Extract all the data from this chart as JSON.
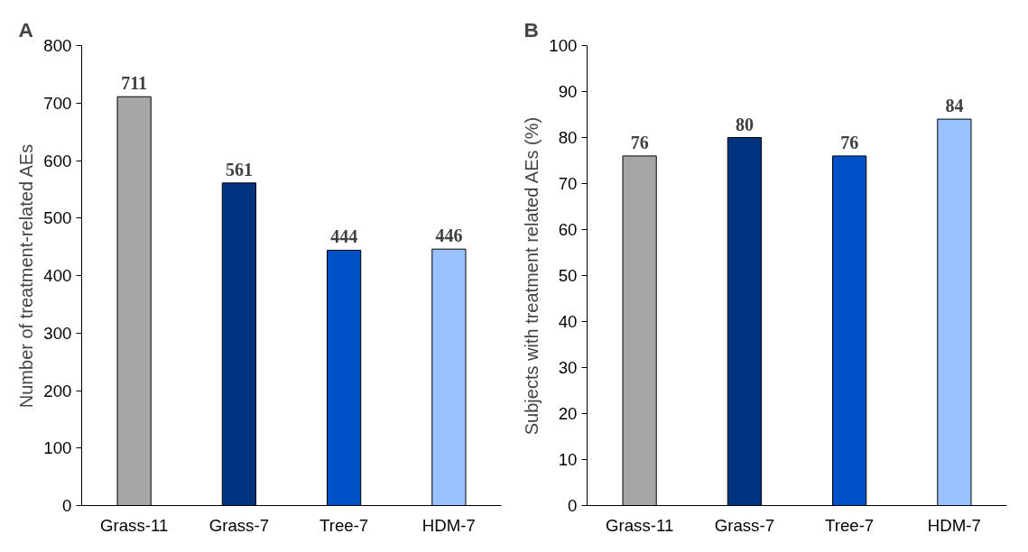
{
  "chart_data": [
    {
      "type": "bar",
      "title": "A",
      "ylabel": "Number of treatment-related AEs",
      "categories": [
        "Grass-11",
        "Grass-7",
        "Tree-7",
        "HDM-7"
      ],
      "values": [
        711,
        561,
        444,
        446
      ],
      "colors": [
        "#a6a6a6",
        "#003380",
        "#0050c8",
        "#99c2ff"
      ],
      "ylim": [
        0,
        800
      ],
      "yticks": [
        0,
        100,
        200,
        300,
        400,
        500,
        600,
        700,
        800
      ],
      "data_labels": true,
      "grid": false
    },
    {
      "type": "bar",
      "title": "B",
      "ylabel": "Subjects with treatment related AEs (%)",
      "categories": [
        "Grass-11",
        "Grass-7",
        "Tree-7",
        "HDM-7"
      ],
      "values": [
        76,
        80,
        76,
        84
      ],
      "colors": [
        "#a6a6a6",
        "#003380",
        "#0050c8",
        "#99c2ff"
      ],
      "ylim": [
        0,
        100
      ],
      "yticks": [
        0,
        10,
        20,
        30,
        40,
        50,
        60,
        70,
        80,
        90,
        100
      ],
      "data_labels": true,
      "grid": false
    }
  ]
}
